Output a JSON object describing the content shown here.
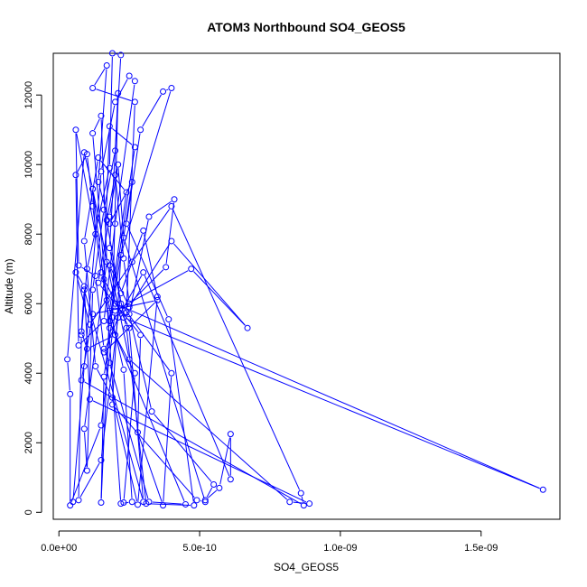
{
  "chart_data": {
    "type": "line",
    "title": "ATOM3 Northbound SO4_GEOS5",
    "xlabel": "SO4_GEOS5",
    "ylabel": "Altitude (m)",
    "xlim": [
      -2e-11,
      1.78e-09
    ],
    "ylim": [
      -200,
      13200
    ],
    "x_ticks": [
      0,
      5e-10,
      1e-09,
      1.5e-09
    ],
    "x_tick_labels": [
      "0.0e+00",
      "5.0e-10",
      "1.0e-09",
      "1.5e-09"
    ],
    "y_ticks": [
      0,
      2000,
      4000,
      6000,
      8000,
      10000,
      12000
    ],
    "y_tick_labels": [
      "0",
      "2000",
      "4000",
      "6000",
      "8000",
      "10000",
      "12000"
    ],
    "marker": "open-circle",
    "line_color": "#0000ff",
    "grid": false,
    "series": [
      {
        "name": "",
        "points": [
          [
            5e-11,
            300
          ],
          [
            9e-11,
            4200
          ],
          [
            1.5e-10,
            9800
          ],
          [
            2e-10,
            11800
          ],
          [
            2.5e-10,
            12550
          ],
          [
            2.7e-10,
            12400
          ],
          [
            2e-10,
            8300
          ],
          [
            1.6e-10,
            5500
          ],
          [
            7e-11,
            4800
          ],
          [
            6e-11,
            9700
          ],
          [
            1e-10,
            10300
          ],
          [
            1.2e-10,
            8800
          ],
          [
            1.5e-10,
            6900
          ],
          [
            2.3e-10,
            4100
          ],
          [
            2.6e-10,
            300
          ],
          [
            2.2e-10,
            250
          ],
          [
            1.7e-10,
            6100
          ],
          [
            1.2e-10,
            10900
          ],
          [
            1.5e-10,
            11400
          ],
          [
            1.7e-10,
            7200
          ],
          [
            9e-11,
            2400
          ],
          [
            1e-10,
            1200
          ],
          [
            1.2e-10,
            6400
          ],
          [
            1.6e-10,
            8700
          ],
          [
            2e-10,
            10400
          ],
          [
            2.1e-10,
            12050
          ],
          [
            1.9e-10,
            5600
          ],
          [
            1.6e-10,
            3900
          ],
          [
            1.5e-10,
            280
          ],
          [
            1.8e-10,
            5800
          ],
          [
            2.4e-10,
            9200
          ],
          [
            1.4e-10,
            10200
          ],
          [
            9e-11,
            7800
          ],
          [
            1.3e-10,
            4200
          ],
          [
            1.9e-10,
            3300
          ],
          [
            2.8e-10,
            220
          ],
          [
            3.5e-10,
            6200
          ],
          [
            3e-10,
            8100
          ],
          [
            2.2e-10,
            6300
          ],
          [
            1.5e-10,
            1500
          ],
          [
            7e-11,
            350
          ],
          [
            8e-11,
            5100
          ],
          [
            1e-10,
            7000
          ],
          [
            1.8e-10,
            9900
          ],
          [
            1.9e-10,
            13200
          ],
          [
            2.2e-10,
            13150
          ],
          [
            1.8e-10,
            7600
          ],
          [
            2.4e-10,
            5300
          ],
          [
            3.1e-10,
            250
          ],
          [
            4.8e-10,
            200
          ],
          [
            3.9e-10,
            5550
          ],
          [
            2.4e-10,
            8300
          ],
          [
            2.9e-10,
            11000
          ],
          [
            3.7e-10,
            12100
          ],
          [
            4e-10,
            12200
          ],
          [
            2.2e-10,
            7400
          ],
          [
            1.9e-10,
            3100
          ],
          [
            4.9e-10,
            350
          ],
          [
            5.2e-10,
            300
          ],
          [
            2.3e-10,
            7900
          ],
          [
            2.1e-10,
            10000
          ],
          [
            1.8e-10,
            8500
          ],
          [
            1.4e-10,
            6600
          ],
          [
            2.9e-10,
            5100
          ],
          [
            2.8e-10,
            2300
          ],
          [
            3.7e-10,
            200
          ],
          [
            4e-10,
            4000
          ],
          [
            2.2e-10,
            6000
          ],
          [
            1.7e-10,
            8400
          ],
          [
            2e-10,
            9700
          ],
          [
            2.3e-10,
            7300
          ],
          [
            2.5e-10,
            6000
          ],
          [
            3.8e-10,
            7050
          ],
          [
            4.1e-10,
            9000
          ],
          [
            3.2e-10,
            8500
          ],
          [
            2.5e-10,
            5700
          ],
          [
            3.3e-10,
            2900
          ],
          [
            5.5e-10,
            800
          ],
          [
            5.2e-10,
            350
          ],
          [
            5.7e-10,
            700
          ],
          [
            6.1e-10,
            2250
          ],
          [
            6.1e-10,
            950
          ],
          [
            3e-10,
            6900
          ],
          [
            2.1e-10,
            5600
          ],
          [
            1.6e-10,
            4600
          ],
          [
            3.5e-10,
            6100
          ],
          [
            1.2e-10,
            5700
          ],
          [
            8e-11,
            3800
          ],
          [
            8.7e-10,
            200
          ],
          [
            8.6e-10,
            550
          ],
          [
            4e-10,
            8800
          ],
          [
            2.6e-10,
            7200
          ],
          [
            1.1e-10,
            5400
          ],
          [
            6e-11,
            6900
          ],
          [
            9e-11,
            6500
          ],
          [
            1.1e-10,
            3250
          ],
          [
            8.9e-10,
            250
          ],
          [
            8.2e-10,
            300
          ],
          [
            2.5e-10,
            4400
          ],
          [
            1.8e-10,
            7100
          ],
          [
            2.5e-10,
            5900
          ],
          [
            4e-10,
            7800
          ],
          [
            6.7e-10,
            5300
          ],
          [
            4.7e-10,
            7000
          ],
          [
            2e-10,
            5800
          ],
          [
            1.5e-10,
            2500
          ],
          [
            4e-11,
            200
          ],
          [
            4e-11,
            3400
          ],
          [
            3e-11,
            4400
          ],
          [
            9e-11,
            10350
          ],
          [
            1.2e-10,
            9300
          ],
          [
            2e-10,
            6000
          ],
          [
            1.72e-09,
            650
          ],
          [
            2.3e-10,
            5600
          ],
          [
            2.4e-10,
            5750
          ],
          [
            2.7e-10,
            11800
          ],
          [
            1.2e-10,
            12200
          ],
          [
            1.7e-10,
            12850
          ],
          [
            1.4e-10,
            9500
          ],
          [
            1.8e-10,
            8300
          ],
          [
            2.6e-10,
            9500
          ],
          [
            1.8e-10,
            5300
          ],
          [
            1.2e-10,
            9300
          ],
          [
            1.3e-10,
            8000
          ],
          [
            6e-11,
            11000
          ],
          [
            7e-11,
            7100
          ],
          [
            1.3e-10,
            6800
          ],
          [
            1.6e-10,
            4700
          ],
          [
            1.8e-10,
            4300
          ],
          [
            3.2e-10,
            300
          ],
          [
            4.5e-10,
            230
          ],
          [
            1.8e-10,
            5500
          ],
          [
            2.7e-10,
            10500
          ],
          [
            1.8e-10,
            11100
          ],
          [
            1.6e-10,
            6700
          ],
          [
            2.5e-10,
            5300
          ],
          [
            3e-10,
            300
          ],
          [
            9e-11,
            6400
          ],
          [
            8e-11,
            5200
          ],
          [
            1e-10,
            4700
          ],
          [
            2e-10,
            5100
          ],
          [
            2.7e-10,
            4000
          ],
          [
            2.3e-10,
            280
          ]
        ]
      }
    ]
  }
}
